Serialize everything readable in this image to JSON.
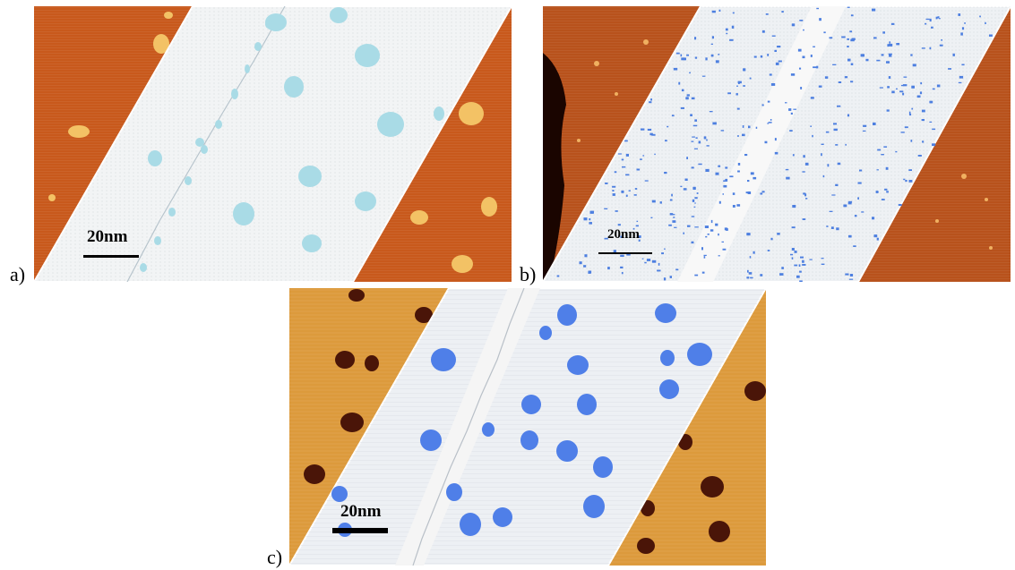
{
  "panels": [
    {
      "letter": "a)",
      "scale_label": "20nm",
      "colors": {
        "substrate": "#c8591c",
        "overlay": "#f2f4f5",
        "islands": "#a9dbe6",
        "adsorbate": "#f3c265"
      }
    },
    {
      "letter": "b)",
      "scale_label": "20nm",
      "colors": {
        "substrate": "#b8521c",
        "overlay": "#eef1f4",
        "islands": "#4d7fe0",
        "adsorbate": "#f0b060"
      }
    },
    {
      "letter": "c)",
      "scale_label": "20nm",
      "colors": {
        "substrate": "#dc9a3c",
        "overlay": "#edf0f4",
        "islands": "#4f7fe8",
        "adsorbate": "#4a1508"
      }
    }
  ]
}
